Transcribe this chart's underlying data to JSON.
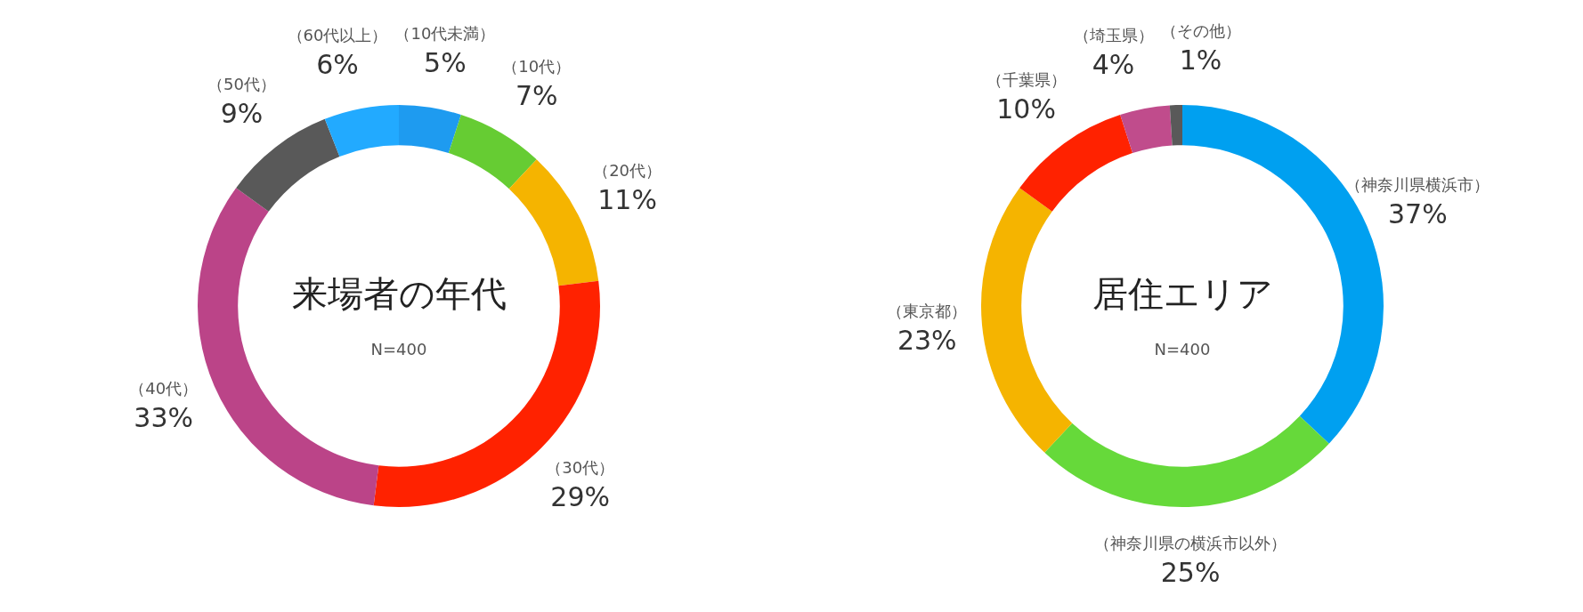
{
  "chart_data": [
    {
      "type": "donut",
      "title": "来場者の年代",
      "subtitle": "N=400",
      "categories": [
        "（10代未満）",
        "（10代）",
        "（20代）",
        "（30代）",
        "（40代）",
        "（50代）",
        "（60代以上）"
      ],
      "values": [
        5,
        7,
        11,
        29,
        33,
        9,
        6
      ],
      "value_labels": [
        "5%",
        "7%",
        "11%",
        "29%",
        "33%",
        "9%",
        "6%"
      ],
      "colors": [
        "#1e9bf0",
        "#66cc33",
        "#f5b400",
        "#ff2200",
        "#bb4488",
        "#595959",
        "#22aaff"
      ],
      "legend": false
    },
    {
      "type": "donut",
      "title": "居住エリア",
      "subtitle": "N=400",
      "categories": [
        "（神奈川県横浜市）",
        "（神奈川県の横浜市以外）",
        "（東京都）",
        "（千葉県）",
        "（埼玉県）",
        "（その他）"
      ],
      "values": [
        37,
        25,
        23,
        10,
        4,
        1
      ],
      "value_labels": [
        "37%",
        "25%",
        "23%",
        "10%",
        "4%",
        "1%"
      ],
      "colors": [
        "#00a0f0",
        "#66d93a",
        "#f5b400",
        "#ff2200",
        "#c04c8c",
        "#595959"
      ],
      "legend": false
    }
  ]
}
